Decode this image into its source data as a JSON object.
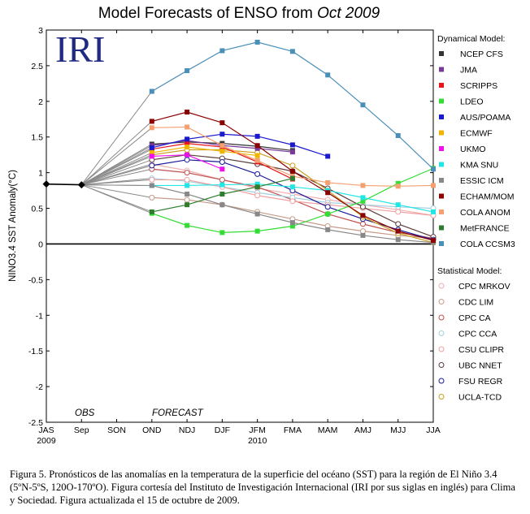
{
  "chart_data": {
    "type": "line",
    "title_prefix": "Model Forecasts of ENSO from ",
    "title_italic": "Oct 2009",
    "logo_text": "IRI",
    "ylabel": "NINO3.4 SST Anomaly(°C)",
    "ylim": [
      -2.5,
      3
    ],
    "yticks": [
      "-2.5",
      "-2",
      "-1.5",
      "-1",
      "-0.5",
      "0",
      "0.5",
      "1",
      "1.5",
      "2",
      "2.5",
      "3"
    ],
    "categories": [
      "JAS",
      "Sep",
      "SON",
      "OND",
      "NDJ",
      "DJF",
      "JFM",
      "FMA",
      "MAM",
      "AMJ",
      "MJJ",
      "JJA"
    ],
    "year_labels": [
      {
        "at": 0,
        "text": "2009"
      },
      {
        "at": 6,
        "text": "2010"
      }
    ],
    "obs_label": "OBS",
    "forecast_label": "FORECAST",
    "observed": {
      "name": "Observed",
      "color": "#000000",
      "values": [
        0.84,
        0.83
      ]
    },
    "legend_dynamical_title": "Dynamical Model:",
    "legend_statistical_title": "Statistical Model:",
    "dynamical": [
      {
        "name": "NCEP CFS",
        "color": "#333333",
        "values": [
          null,
          null,
          null,
          1.4,
          1.43,
          1.41,
          1.37,
          1.31,
          null,
          null,
          null,
          null
        ]
      },
      {
        "name": "JMA",
        "color": "#7a3a9a",
        "values": [
          null,
          null,
          null,
          1.38,
          1.45,
          1.38,
          1.34,
          1.29,
          null,
          null,
          null,
          null
        ]
      },
      {
        "name": "SCRIPPS",
        "color": "#e8151b",
        "values": [
          null,
          null,
          null,
          1.33,
          1.41,
          1.36,
          1.15,
          0.91,
          null,
          null,
          null,
          null
        ]
      },
      {
        "name": "LDEO",
        "color": "#33dd33",
        "values": [
          null,
          null,
          null,
          0.43,
          0.26,
          0.16,
          0.18,
          0.25,
          0.42,
          0.6,
          0.85,
          1.06
        ]
      },
      {
        "name": "AUS/POAMA",
        "color": "#1a1acc",
        "values": [
          null,
          null,
          null,
          1.35,
          1.47,
          1.54,
          1.51,
          1.39,
          1.23,
          null,
          null,
          null
        ]
      },
      {
        "name": "ECMWF",
        "color": "#f0b400",
        "values": [
          null,
          null,
          null,
          1.28,
          1.36,
          1.3,
          1.24,
          null,
          null,
          null,
          null,
          null
        ]
      },
      {
        "name": "UKMO",
        "color": "#ee11ee",
        "values": [
          null,
          null,
          null,
          1.23,
          1.25,
          1.05,
          null,
          null,
          null,
          null,
          null,
          null
        ]
      },
      {
        "name": "KMA SNU",
        "color": "#22e5e5",
        "values": [
          null,
          null,
          null,
          0.82,
          0.82,
          0.83,
          0.84,
          0.8,
          0.75,
          0.65,
          0.55,
          0.45
        ]
      },
      {
        "name": "ESSIC ICM",
        "color": "#888888",
        "values": [
          null,
          null,
          null,
          0.82,
          0.7,
          0.55,
          0.42,
          0.3,
          0.2,
          0.12,
          0.06,
          0.02
        ]
      },
      {
        "name": "ECHAM/MOM",
        "color": "#8b0000",
        "values": [
          null,
          null,
          null,
          1.72,
          1.85,
          1.7,
          1.38,
          1.02,
          0.72,
          0.4,
          0.18,
          0.05
        ]
      },
      {
        "name": "COLA ANOM",
        "color": "#f4a070",
        "values": [
          null,
          null,
          null,
          1.63,
          1.64,
          1.38,
          1.17,
          0.95,
          0.86,
          0.82,
          0.81,
          0.82
        ]
      },
      {
        "name": "MetFRANCE",
        "color": "#2e7d2e",
        "values": [
          null,
          null,
          null,
          0.45,
          0.55,
          0.7,
          0.8,
          0.92,
          null,
          null,
          null,
          null
        ]
      },
      {
        "name": "COLA CCSM3",
        "color": "#4a8fb8",
        "values": [
          null,
          null,
          null,
          2.14,
          2.43,
          2.71,
          2.83,
          2.7,
          2.37,
          1.95,
          1.52,
          1.05
        ]
      }
    ],
    "statistical": [
      {
        "name": "CPC MRKOV",
        "color": "#f0b0b0",
        "values": [
          null,
          null,
          null,
          1.12,
          1.03,
          0.9,
          0.78,
          0.7,
          0.62,
          0.55,
          0.48,
          0.4
        ]
      },
      {
        "name": "CDC LIM",
        "color": "#c89a8a",
        "values": [
          null,
          null,
          null,
          0.65,
          0.62,
          0.55,
          0.45,
          0.35,
          0.25,
          0.18,
          0.12,
          0.08
        ]
      },
      {
        "name": "CPC CA",
        "color": "#c05050",
        "values": [
          null,
          null,
          null,
          1.05,
          1.0,
          0.9,
          0.8,
          0.62,
          0.42,
          0.28,
          0.16,
          0.08
        ]
      },
      {
        "name": "CPC CCA",
        "color": "#a0d0e0",
        "values": [
          null,
          null,
          null,
          0.92,
          0.88,
          0.8,
          0.72,
          0.65,
          0.58,
          0.55,
          0.52,
          0.5
        ]
      },
      {
        "name": "CSU CLIPR",
        "color": "#f0a0a0",
        "values": [
          null,
          null,
          null,
          0.9,
          0.9,
          0.8,
          0.68,
          0.6,
          0.55,
          0.5,
          0.45,
          0.4
        ]
      },
      {
        "name": "UBC NNET",
        "color": "#5a3a3a",
        "values": [
          null,
          null,
          null,
          1.18,
          1.25,
          1.2,
          1.12,
          1.02,
          0.78,
          0.52,
          0.28,
          0.1
        ]
      },
      {
        "name": "FSU REGR",
        "color": "#1a1a99",
        "values": [
          null,
          null,
          null,
          1.1,
          1.18,
          1.15,
          0.98,
          0.75,
          0.52,
          0.35,
          0.2,
          0.06
        ]
      },
      {
        "name": "UCLA-TCD",
        "color": "#c8a020",
        "values": [
          null,
          null,
          null,
          1.25,
          1.32,
          1.32,
          1.28,
          1.1,
          0.75,
          0.38,
          0.15,
          0.02
        ]
      }
    ]
  },
  "caption": "Figura 5. Pronósticos de las anomalías en la temperatura de la superficie del océano (SST) para la región de El Niño 3.4 (5ºN-5ºS, 120O-170ºO). Figura cortesía del Instituto de Investigación Internacional (IRI por sus siglas en inglés) para Clima y Sociedad. Figura actualizada el 15 de octubre de 2009."
}
